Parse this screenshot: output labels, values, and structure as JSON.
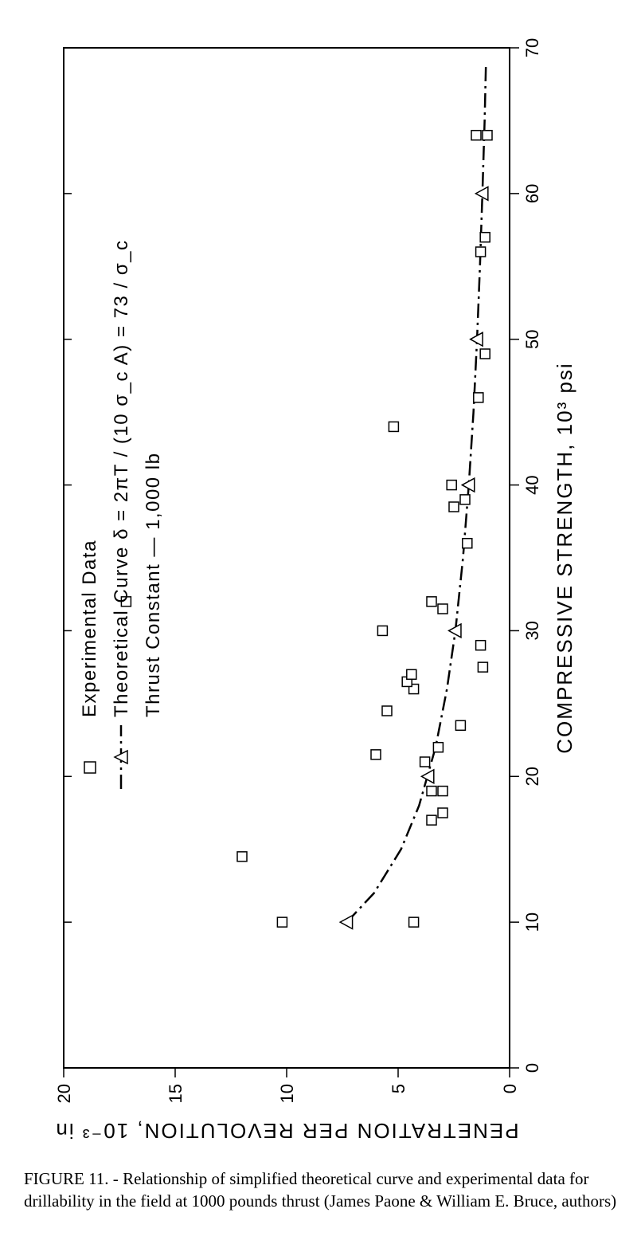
{
  "figure": {
    "type": "scatter+curve",
    "rotated_ccw_90": true,
    "background_color": "#ffffff",
    "border_color": "#000000",
    "x_axis": {
      "label": "COMPRESSIVE STRENGTH, 10³ psi",
      "min": 0,
      "max": 70,
      "ticks": [
        0,
        10,
        20,
        30,
        40,
        50,
        60,
        70
      ],
      "tick_fontsize": 22,
      "title_fontsize": 26
    },
    "y_axis": {
      "label": "PENETRATION PER REVOLUTION, 10⁻³ in",
      "min": 0,
      "max": 20,
      "ticks": [
        0,
        5,
        10,
        15,
        20
      ],
      "tick_fontsize": 22,
      "title_fontsize": 26
    },
    "legend": {
      "items": [
        {
          "marker": "square",
          "label": "Experimental Data"
        },
        {
          "marker": "triangle-line",
          "label": "Theoretical Curve   δ = 2πT / (10 σ_c A) = 73 / σ_c"
        },
        {
          "marker": "none",
          "label": "Thrust Constant — 1,000 lb"
        }
      ],
      "fontsize": 24
    },
    "experimental_points": [
      {
        "x": 10,
        "y": 10.2
      },
      {
        "x": 10,
        "y": 4.3
      },
      {
        "x": 14.5,
        "y": 12.0
      },
      {
        "x": 17,
        "y": 3.5
      },
      {
        "x": 17.5,
        "y": 3.0
      },
      {
        "x": 19,
        "y": 3.0
      },
      {
        "x": 19,
        "y": 3.5
      },
      {
        "x": 21,
        "y": 3.8
      },
      {
        "x": 21.5,
        "y": 6.0
      },
      {
        "x": 22,
        "y": 3.2
      },
      {
        "x": 23.5,
        "y": 2.2
      },
      {
        "x": 24.5,
        "y": 5.5
      },
      {
        "x": 26,
        "y": 4.3
      },
      {
        "x": 26.5,
        "y": 4.6
      },
      {
        "x": 27,
        "y": 4.4
      },
      {
        "x": 27.5,
        "y": 1.2
      },
      {
        "x": 29,
        "y": 1.3
      },
      {
        "x": 30,
        "y": 5.7
      },
      {
        "x": 32,
        "y": 17.2
      },
      {
        "x": 31.5,
        "y": 3.0
      },
      {
        "x": 32,
        "y": 3.5
      },
      {
        "x": 36,
        "y": 1.9
      },
      {
        "x": 38.5,
        "y": 2.5
      },
      {
        "x": 39,
        "y": 2.0
      },
      {
        "x": 40,
        "y": 2.6
      },
      {
        "x": 44,
        "y": 5.2
      },
      {
        "x": 46,
        "y": 1.4
      },
      {
        "x": 49,
        "y": 1.1
      },
      {
        "x": 56,
        "y": 1.3
      },
      {
        "x": 57,
        "y": 1.1
      },
      {
        "x": 64,
        "y": 1.0
      },
      {
        "x": 64,
        "y": 1.5
      }
    ],
    "theoretical_points": [
      {
        "x": 10,
        "y": 7.3
      },
      {
        "x": 20,
        "y": 3.65
      },
      {
        "x": 30,
        "y": 2.43
      },
      {
        "x": 40,
        "y": 1.83
      },
      {
        "x": 50,
        "y": 1.46
      },
      {
        "x": 60,
        "y": 1.22
      }
    ],
    "curve_path": [
      {
        "x": 10,
        "y": 7.3
      },
      {
        "x": 12,
        "y": 6.08
      },
      {
        "x": 15,
        "y": 4.87
      },
      {
        "x": 18,
        "y": 4.06
      },
      {
        "x": 22,
        "y": 3.32
      },
      {
        "x": 26,
        "y": 2.81
      },
      {
        "x": 30,
        "y": 2.43
      },
      {
        "x": 35,
        "y": 2.09
      },
      {
        "x": 40,
        "y": 1.83
      },
      {
        "x": 45,
        "y": 1.62
      },
      {
        "x": 50,
        "y": 1.46
      },
      {
        "x": 55,
        "y": 1.33
      },
      {
        "x": 60,
        "y": 1.22
      },
      {
        "x": 65,
        "y": 1.12
      },
      {
        "x": 69,
        "y": 1.06
      }
    ],
    "marker_style": {
      "square_size": 12,
      "triangle_size": 14,
      "marker_stroke": "#000000",
      "marker_fill": "#ffffff",
      "curve_color": "#000000",
      "curve_width": 2.5,
      "curve_dash": "18 6 3 6"
    }
  },
  "caption": {
    "prefix": "FIGURE 11. - ",
    "text": "Relationship of simplified theoretical curve and experimental data for drillability in the field at 1000 pounds thrust (James Paone & William E. Bruce, authors)"
  }
}
